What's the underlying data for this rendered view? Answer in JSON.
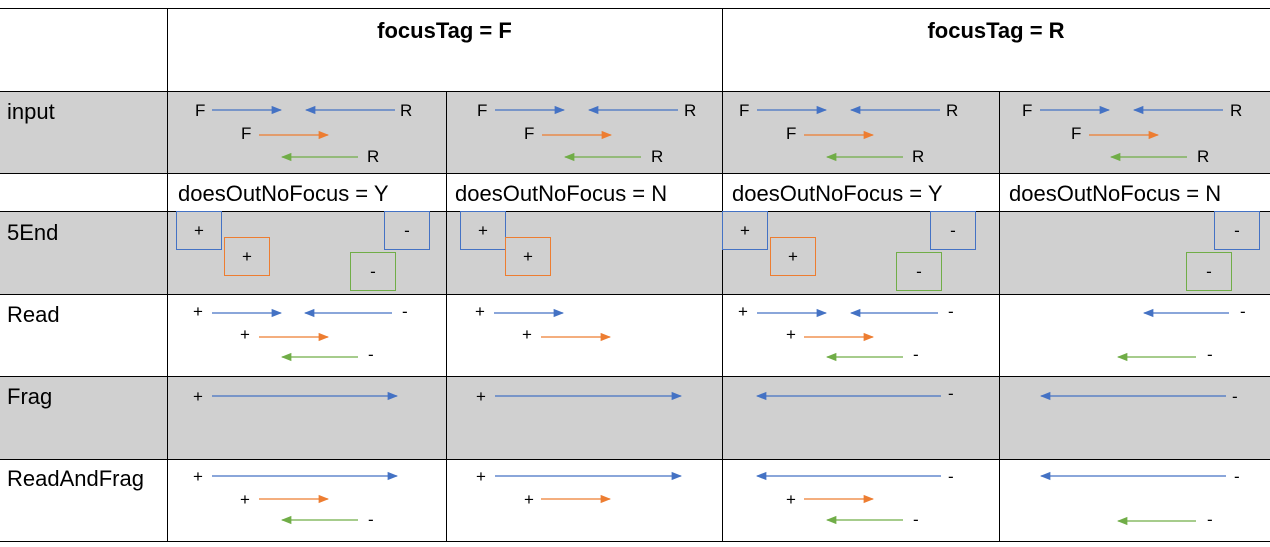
{
  "headers": {
    "focus_f": "focusTag = F",
    "focus_r": "focusTag = R"
  },
  "rows": {
    "input": "input",
    "end5": "5End",
    "read": "Read",
    "frag": "Frag",
    "readandfrag": "ReadAndFrag"
  },
  "dnf": {
    "c1": "doesOutNoFocus = Y",
    "c2": "doesOutNoFocus = N",
    "c3": "doesOutNoFocus = Y",
    "c4": "doesOutNoFocus = N"
  },
  "symbols": {
    "F": "F",
    "R": "R",
    "plus": "+",
    "minus": "-"
  },
  "colors": {
    "blue": "#4472c4",
    "orange": "#ed7d31",
    "green": "#70ad47",
    "gray": "#d0d0d0"
  }
}
